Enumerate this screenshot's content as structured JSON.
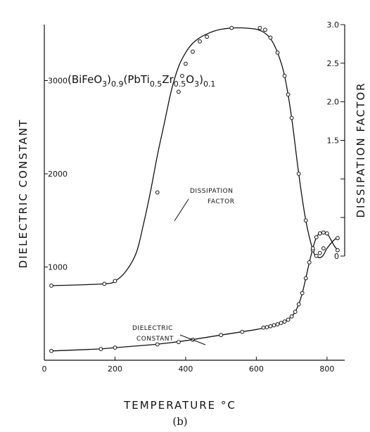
{
  "chart_data": {
    "type": "line",
    "formula": {
      "parts": [
        {
          "t": "(BiFeO",
          "sub": false
        },
        {
          "t": "3",
          "sub": true
        },
        {
          "t": ")",
          "sub": false
        },
        {
          "t": "0.9",
          "sub": true
        },
        {
          "t": "(PbTi",
          "sub": false
        },
        {
          "t": "0.5",
          "sub": true
        },
        {
          "t": "Zr",
          "sub": false
        },
        {
          "t": "0.5",
          "sub": true
        },
        {
          "t": "O",
          "sub": false
        },
        {
          "t": "3",
          "sub": true
        },
        {
          "t": ")",
          "sub": false
        },
        {
          "t": "0.1",
          "sub": true
        }
      ]
    },
    "panel_label": "(b)",
    "xlabel": "TEMPERATURE °C",
    "ylabel_left": "DIELECTRIC CONSTANT",
    "ylabel_right": "DISSIPATION FACTOR",
    "xlim": [
      0,
      850
    ],
    "ylim_left": [
      0,
      3600
    ],
    "ylim_right": [
      -1.35,
      3.0
    ],
    "x_ticks": [
      0,
      200,
      400,
      600,
      800
    ],
    "y_left_ticks": [
      1000,
      2000,
      3000
    ],
    "y_right_ticks": [
      0,
      0.5,
      1.0,
      1.5,
      2.0,
      2.5,
      3.0
    ],
    "y_right_tick_labels": [
      "0",
      "",
      "",
      "1.5",
      "2.0",
      "2.5",
      "3.0"
    ],
    "annotations": [
      {
        "lines": [
          "DISSIPATION",
          "FACTOR"
        ]
      },
      {
        "lines": [
          "DIELECTRIC",
          "CONSTANT"
        ]
      }
    ],
    "series": [
      {
        "axis": "left",
        "x": [
          20,
          170,
          200,
          230,
          260,
          280,
          300,
          320,
          340,
          360,
          380,
          400,
          420,
          440,
          460,
          480,
          500,
          520,
          540,
          560,
          580,
          600,
          620,
          640,
          660,
          680,
          700,
          720,
          740,
          760,
          770,
          780,
          790,
          800,
          820,
          830
        ],
        "y": [
          800,
          820,
          850,
          950,
          1150,
          1450,
          1800,
          2200,
          2550,
          2900,
          3150,
          3300,
          3400,
          3460,
          3500,
          3530,
          3550,
          3560,
          3565,
          3565,
          3560,
          3550,
          3520,
          3450,
          3300,
          3050,
          2600,
          2000,
          1500,
          1180,
          1120,
          1100,
          1130,
          1200,
          1290,
          1310
        ],
        "markers_x": [
          20,
          170,
          200,
          320,
          380,
          390,
          400,
          420,
          440,
          460,
          530,
          610,
          625,
          640,
          660,
          680,
          690,
          700,
          720,
          740,
          760,
          770,
          780,
          790,
          830
        ],
        "markers_y": [
          800,
          820,
          850,
          1800,
          2880,
          3050,
          3180,
          3310,
          3420,
          3470,
          3565,
          3565,
          3545,
          3460,
          3300,
          3050,
          2850,
          2600,
          2000,
          1500,
          1180,
          1120,
          1150,
          1200,
          1310
        ]
      },
      {
        "axis": "left",
        "x": [
          20,
          150,
          200,
          300,
          350,
          400,
          450,
          500,
          550,
          600,
          630,
          660,
          680,
          700,
          710,
          720,
          730,
          740,
          750,
          760,
          770,
          780,
          790,
          800,
          810,
          820,
          830
        ],
        "y": [
          100,
          120,
          135,
          165,
          185,
          210,
          240,
          270,
          300,
          330,
          355,
          385,
          415,
          470,
          520,
          600,
          720,
          880,
          1050,
          1200,
          1320,
          1360,
          1370,
          1360,
          1300,
          1230,
          1180
        ],
        "markers_x": [
          20,
          160,
          200,
          320,
          380,
          420,
          500,
          560,
          620,
          630,
          640,
          650,
          660,
          670,
          680,
          690,
          700,
          710,
          720,
          730,
          740,
          750,
          760,
          770,
          780,
          790,
          800,
          830
        ],
        "markers_y": [
          100,
          120,
          135,
          170,
          195,
          220,
          270,
          305,
          350,
          355,
          365,
          375,
          385,
          400,
          415,
          435,
          470,
          520,
          600,
          720,
          880,
          1050,
          1200,
          1320,
          1360,
          1370,
          1360,
          1180
        ]
      }
    ]
  }
}
